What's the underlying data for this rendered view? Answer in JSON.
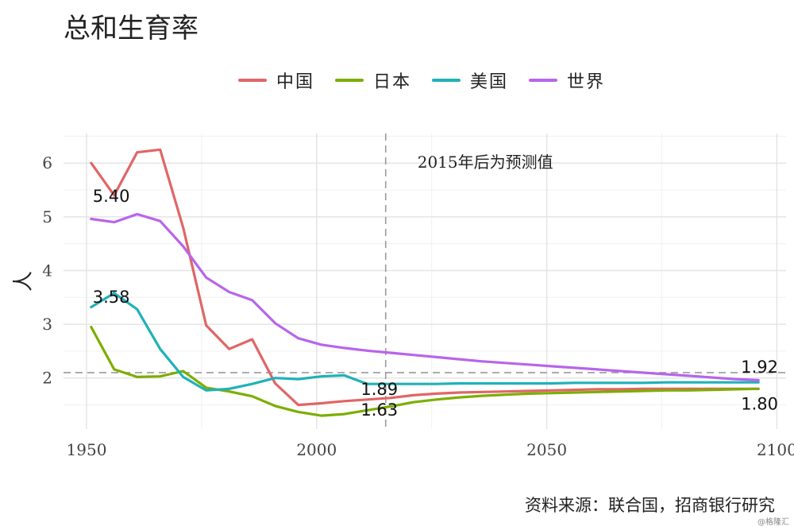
{
  "header": {
    "title": "总和生育率"
  },
  "footer": {
    "source": "资料来源：联合国，招商银行研究",
    "watermark": "@格隆汇"
  },
  "chart_data": {
    "type": "line",
    "title": "总和生育率",
    "ylabel": "人",
    "xlim": [
      1945,
      2102
    ],
    "ylim": [
      1.05,
      6.55
    ],
    "xticks": [
      1950,
      2000,
      2050,
      2100
    ],
    "yticks": [
      2,
      3,
      4,
      5,
      6
    ],
    "grid": true,
    "legend_position": "top",
    "annotation": "2015年后为预测值",
    "vline_x": 2015,
    "hline_y": 2.1,
    "series": [
      {
        "name": "中国",
        "color": "#E06666",
        "x": [
          1951,
          1956,
          1961,
          1966,
          1971,
          1976,
          1981,
          1986,
          1991,
          1996,
          2001,
          2006,
          2011,
          2016,
          2021,
          2026,
          2031,
          2036,
          2041,
          2046,
          2051,
          2056,
          2061,
          2066,
          2071,
          2076,
          2081,
          2086,
          2091,
          2096
        ],
        "y": [
          6.0,
          5.4,
          6.2,
          6.25,
          4.8,
          2.98,
          2.54,
          2.72,
          1.9,
          1.5,
          1.53,
          1.57,
          1.6,
          1.63,
          1.68,
          1.71,
          1.73,
          1.74,
          1.75,
          1.76,
          1.77,
          1.78,
          1.79,
          1.79,
          1.8,
          1.8,
          1.8,
          1.8,
          1.8,
          1.8
        ]
      },
      {
        "name": "日本",
        "color": "#7CAE00",
        "x": [
          1951,
          1956,
          1961,
          1966,
          1971,
          1976,
          1981,
          1986,
          1991,
          1996,
          2001,
          2006,
          2011,
          2016,
          2021,
          2026,
          2031,
          2036,
          2041,
          2046,
          2051,
          2056,
          2061,
          2066,
          2071,
          2076,
          2081,
          2086,
          2091,
          2096
        ],
        "y": [
          2.95,
          2.16,
          2.02,
          2.03,
          2.13,
          1.82,
          1.75,
          1.66,
          1.48,
          1.37,
          1.3,
          1.33,
          1.4,
          1.47,
          1.55,
          1.6,
          1.64,
          1.67,
          1.69,
          1.71,
          1.72,
          1.73,
          1.74,
          1.75,
          1.76,
          1.77,
          1.77,
          1.78,
          1.79,
          1.8
        ]
      },
      {
        "name": "美国",
        "color": "#1FB2B8",
        "x": [
          1951,
          1956,
          1961,
          1966,
          1971,
          1976,
          1981,
          1986,
          1991,
          1996,
          2001,
          2006,
          2011,
          2016,
          2021,
          2026,
          2031,
          2036,
          2041,
          2046,
          2051,
          2056,
          2061,
          2066,
          2071,
          2076,
          2081,
          2086,
          2091,
          2096
        ],
        "y": [
          3.32,
          3.58,
          3.28,
          2.54,
          2.02,
          1.77,
          1.8,
          1.89,
          2.0,
          1.98,
          2.03,
          2.05,
          1.89,
          1.89,
          1.89,
          1.89,
          1.9,
          1.9,
          1.9,
          1.9,
          1.9,
          1.91,
          1.91,
          1.91,
          1.91,
          1.92,
          1.92,
          1.92,
          1.92,
          1.92
        ]
      },
      {
        "name": "世界",
        "color": "#B865EA",
        "x": [
          1951,
          1956,
          1961,
          1966,
          1971,
          1976,
          1981,
          1986,
          1991,
          1996,
          2001,
          2006,
          2011,
          2016,
          2021,
          2026,
          2031,
          2036,
          2041,
          2046,
          2051,
          2056,
          2061,
          2066,
          2071,
          2076,
          2081,
          2086,
          2091,
          2096
        ],
        "y": [
          4.96,
          4.9,
          5.05,
          4.92,
          4.45,
          3.87,
          3.6,
          3.45,
          3.02,
          2.74,
          2.62,
          2.56,
          2.51,
          2.47,
          2.43,
          2.39,
          2.35,
          2.31,
          2.28,
          2.25,
          2.22,
          2.19,
          2.16,
          2.13,
          2.1,
          2.07,
          2.04,
          2.01,
          1.98,
          1.96
        ]
      }
    ],
    "data_labels": [
      {
        "text": "5.40",
        "x": 1951,
        "y": 5.4
      },
      {
        "text": "3.58",
        "x": 1951,
        "y": 3.58
      },
      {
        "text": "1.89",
        "x": 2012,
        "y": 1.89
      },
      {
        "text": "1.63",
        "x": 2012,
        "y": 1.63
      },
      {
        "text": "1.92",
        "x": 2096,
        "y": 1.92
      },
      {
        "text": "1.80",
        "x": 2096,
        "y": 1.8
      }
    ]
  }
}
